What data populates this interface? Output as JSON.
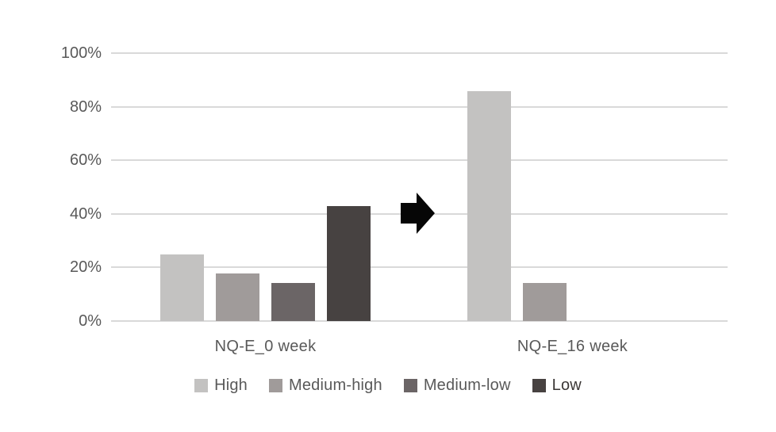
{
  "chart_data": {
    "type": "bar",
    "categories": [
      "NQ-E_0 week",
      "NQ-E_16 week"
    ],
    "series": [
      {
        "name": "High",
        "color": "#c3c2c1",
        "label_color": "#595959",
        "values": [
          25.0,
          85.7
        ]
      },
      {
        "name": "Medium-high",
        "color": "#a09b9a",
        "label_color": "#595959",
        "values": [
          17.9,
          14.3
        ]
      },
      {
        "name": "Medium-low",
        "color": "#6b6566",
        "label_color": "#595959",
        "values": [
          14.3,
          0
        ]
      },
      {
        "name": "Low",
        "color": "#474241",
        "label_color": "#3b3736",
        "values": [
          42.9,
          0
        ]
      }
    ],
    "title": "",
    "xlabel": "",
    "ylabel": "",
    "ylim": [
      0,
      100
    ],
    "yticks": [
      "0%",
      "20%",
      "40%",
      "60%",
      "80%",
      "100%"
    ],
    "grid": true,
    "legend_position": "bottom",
    "annotations": [
      {
        "type": "arrow-right",
        "between": [
          "NQ-E_0 week",
          "NQ-E_16 week"
        ],
        "color": "#060606"
      }
    ]
  },
  "styles": {
    "background": "#ffffff",
    "gridline_color": "#d9d9d9",
    "tick_label_color": "#595959",
    "category_label_color": "#595959",
    "arrow_color": "#060606"
  }
}
